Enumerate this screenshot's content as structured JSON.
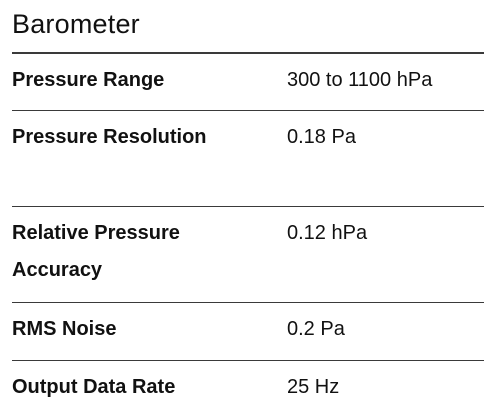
{
  "section": {
    "title": "Barometer"
  },
  "specs": [
    {
      "label": "Pressure Range",
      "value": "300 to 1100 hPa"
    },
    {
      "label": "Pressure Resolution",
      "value": "0.18 Pa"
    },
    {
      "label": "Relative Pressure Accuracy",
      "value": "0.12 hPa"
    },
    {
      "label": "RMS Noise",
      "value": "0.2 Pa"
    },
    {
      "label": "Output Data Rate",
      "value": "25 Hz"
    }
  ],
  "colors": {
    "text": "#111111",
    "rule": "#3a3a3a",
    "background": "#ffffff"
  }
}
